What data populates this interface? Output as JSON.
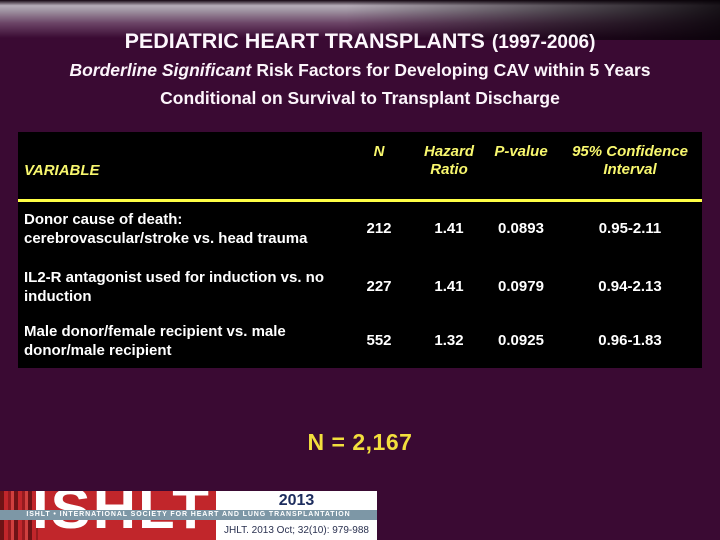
{
  "header": {
    "title": "PEDIATRIC HEART TRANSPLANTS",
    "years": "(1997-2006)",
    "subtitle1_italic": "Borderline Significant",
    "subtitle1_rest": "Risk Factors for Developing CAV within 5 Years",
    "subtitle2": "Conditional on Survival to Transplant Discharge"
  },
  "table": {
    "headers": {
      "variable": "VARIABLE",
      "n": "N",
      "hazard_ratio_line1": "Hazard",
      "hazard_ratio_line2": "Ratio",
      "p_value": "P-value",
      "ci_line1": "95% Confidence",
      "ci_line2": "Interval"
    },
    "rows": [
      {
        "label_line1": "Donor cause of death:",
        "label_line2": "cerebrovascular/stroke vs. head trauma",
        "n": "212",
        "hazard_ratio": "1.41",
        "p_value": "0.0893",
        "ci": "0.95-2.11"
      },
      {
        "label_line1": "IL2-R antagonist used for induction vs. no",
        "label_line2": "induction",
        "n": "227",
        "hazard_ratio": "1.41",
        "p_value": "0.0979",
        "ci": "0.94-2.13"
      },
      {
        "label_line1": "Male donor/female recipient vs. male",
        "label_line2": "donor/male recipient",
        "n": "552",
        "hazard_ratio": "1.32",
        "p_value": "0.0925",
        "ci": "0.96-1.83"
      }
    ]
  },
  "footer": {
    "n_total": "N = 2,167"
  },
  "logo": {
    "wordmark": "ISHLT",
    "year": "2013",
    "society": "ISHLT • INTERNATIONAL SOCIETY FOR HEART AND LUNG TRANSPLANTATION",
    "citation": "JHLT. 2013 Oct; 32(10): 979-988"
  },
  "colors": {
    "background": "#3a0a33",
    "table_background": "#000000",
    "header_yellow": "#f8f76e",
    "separator_yellow": "#ffff45",
    "body_text": "#ffffff",
    "n_total_yellow": "#f2df3d",
    "logo_red": "#c1262b",
    "banner_blue_gray": "#7d97a6",
    "logo_navy": "#1d2d5e"
  }
}
